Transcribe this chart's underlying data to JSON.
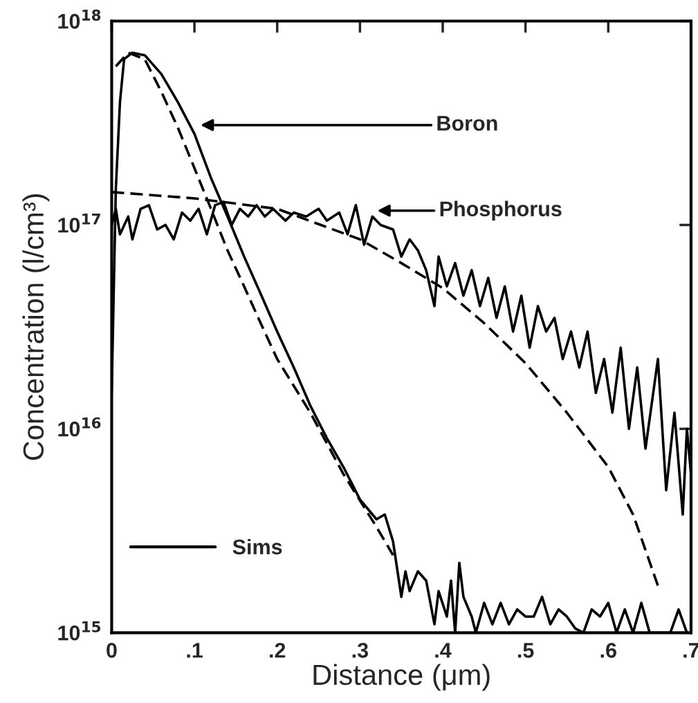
{
  "chart_data": {
    "type": "line",
    "xlabel": "Distance (μm)",
    "ylabel": "Concentration (l/cm³)",
    "log": "y",
    "xlim": [
      0,
      0.7
    ],
    "ylim": [
      1000000000000000.0,
      1e+18
    ],
    "xticks": [
      0,
      {
        "value": 0.1,
        "label": ".1"
      },
      {
        "value": 0.2,
        "label": ".2"
      },
      {
        "value": 0.3,
        "label": ".3"
      },
      {
        "value": 0.4,
        "label": ".4"
      },
      {
        "value": 0.5,
        "label": ".5"
      },
      {
        "value": 0.6,
        "label": ".6"
      },
      {
        "value": 0.7,
        "label": ".7"
      }
    ],
    "yticks": [
      {
        "value": 1000000000000000.0,
        "label": "10$^{15}$"
      },
      {
        "value": 1e+16,
        "label": "10$^{16}$"
      },
      {
        "value": 1e+17,
        "label": "10$^{17}$"
      },
      {
        "value": 1e+18,
        "label": "10$^{18}$"
      }
    ],
    "grid": false,
    "legend": "bottom left",
    "series": [
      {
        "name": "Sims",
        "color": "#000000",
        "line_style": "solid",
        "x": [
          0.0,
          0.005,
          0.01,
          0.015,
          0.025,
          0.04,
          0.06,
          0.08,
          0.1,
          0.12,
          0.14,
          0.16,
          0.18,
          0.2,
          0.22,
          0.24,
          0.26,
          0.28,
          0.3,
          0.32,
          0.33,
          0.34,
          0.35,
          0.355,
          0.36,
          0.37,
          0.38,
          0.39,
          0.395,
          0.405,
          0.41,
          0.415,
          0.42,
          0.425,
          0.435,
          0.44,
          0.45,
          0.46,
          0.47,
          0.48,
          0.49,
          0.5,
          0.51,
          0.52,
          0.53,
          0.54,
          0.55,
          0.56,
          0.57,
          0.58,
          0.59,
          0.6,
          0.61,
          0.62,
          0.63,
          0.64,
          0.65,
          0.66,
          0.675,
          0.685,
          0.695
        ],
        "values": [
          1.5e+16,
          1.5e+17,
          4e+17,
          6.5e+17,
          7e+17,
          6.8e+17,
          5.5e+17,
          4e+17,
          2.8e+17,
          1.7e+17,
          1.1e+17,
          7e+16,
          4.6e+16,
          3e+16,
          2e+16,
          1.3e+16,
          9000000000000000.0,
          6500000000000000.0,
          4500000000000000.0,
          3600000000000000.0,
          3800000000000000.0,
          2800000000000000.0,
          1500000000000000.0,
          2000000000000000.0,
          1600000000000000.0,
          2000000000000000.0,
          1800000000000000.0,
          1100000000000000.0,
          1600000000000000.0,
          1200000000000000.0,
          1800000000000000.0,
          1000000000000000.0,
          2200000000000000.0,
          1500000000000000.0,
          1200000000000000.0,
          1000000000000000.0,
          1400000000000000.0,
          1100000000000000.0,
          1400000000000000.0,
          1100000000000000.0,
          1300000000000000.0,
          1200000000000000.0,
          1200000000000000.0,
          1500000000000000.0,
          1100000000000000.0,
          1300000000000000.0,
          1200000000000000.0,
          1050000000000000.0,
          1000000000000000.0,
          1300000000000000.0,
          1200000000000000.0,
          1400000000000000.0,
          1000000000000000.0,
          1300000000000000.0,
          1000000000000000.0,
          1400000000000000.0,
          1000000000000000.0,
          1000000000000000.0,
          1000000000000000.0,
          1300000000000000.0,
          1000000000000000.0
        ]
      },
      {
        "color": "#000000",
        "line_style": "dashed",
        "x": [
          0.005,
          0.02,
          0.04,
          0.06,
          0.08,
          0.1,
          0.12,
          0.14,
          0.16,
          0.18,
          0.2,
          0.24,
          0.28,
          0.32,
          0.34
        ],
        "values": [
          6e+17,
          7e+17,
          6.5e+17,
          4.5e+17,
          3e+17,
          1.9e+17,
          1.2e+17,
          7.5e+16,
          5e+16,
          3.3e+16,
          2.2e+16,
          1.2e+16,
          6000000000000000.0,
          3300000000000000.0,
          2400000000000000.0
        ]
      },
      {
        "color": "#000000",
        "line_style": "solid",
        "x": [
          0.0,
          0.005,
          0.01,
          0.02,
          0.025,
          0.035,
          0.045,
          0.055,
          0.065,
          0.075,
          0.085,
          0.095,
          0.105,
          0.115,
          0.125,
          0.135,
          0.145,
          0.155,
          0.165,
          0.175,
          0.185,
          0.195,
          0.21,
          0.22,
          0.235,
          0.25,
          0.26,
          0.275,
          0.285,
          0.295,
          0.305,
          0.315,
          0.325,
          0.34,
          0.35,
          0.36,
          0.37,
          0.38,
          0.39,
          0.395,
          0.405,
          0.415,
          0.425,
          0.435,
          0.445,
          0.455,
          0.465,
          0.475,
          0.485,
          0.495,
          0.505,
          0.515,
          0.525,
          0.535,
          0.545,
          0.555,
          0.565,
          0.575,
          0.585,
          0.595,
          0.605,
          0.615,
          0.625,
          0.635,
          0.645,
          0.66,
          0.67,
          0.68,
          0.69,
          0.695,
          0.7
        ],
        "values": [
          1e+17,
          1.2e+17,
          9e+16,
          1.1e+17,
          8.5e+16,
          1.2e+17,
          1.25e+17,
          9.5e+16,
          1e+17,
          8.5e+16,
          1.15e+17,
          1.05e+17,
          1.2e+17,
          9e+16,
          1.25e+17,
          1.3e+17,
          1e+17,
          1.2e+17,
          1.1e+17,
          1.25e+17,
          1.1e+17,
          1.2e+17,
          1.05e+17,
          1.15e+17,
          1.1e+17,
          1.2e+17,
          1.05e+17,
          1.15e+17,
          9e+16,
          1.25e+17,
          8e+16,
          1.1e+17,
          1e+17,
          9.5e+16,
          7e+16,
          8.5e+16,
          7.5e+16,
          6e+16,
          4e+16,
          7e+16,
          5e+16,
          6.5e+16,
          4.5e+16,
          6e+16,
          4e+16,
          5.5e+16,
          3.5e+16,
          5e+16,
          3e+16,
          4.5e+16,
          2.5e+16,
          4e+16,
          3e+16,
          3.5e+16,
          2.2e+16,
          3e+16,
          2e+16,
          3e+16,
          1.5e+16,
          2.2e+16,
          1.2e+16,
          2.5e+16,
          1e+16,
          2e+16,
          8000000000000000.0,
          2.2e+16,
          5000000000000000.0,
          1.2e+16,
          3800000000000000.0,
          1e+16,
          6000000000000000.0
        ]
      },
      {
        "color": "#000000",
        "line_style": "dashed",
        "x": [
          0.0,
          0.1,
          0.2,
          0.3,
          0.35,
          0.4,
          0.45,
          0.5,
          0.55,
          0.6,
          0.63,
          0.66
        ],
        "values": [
          1.45e+17,
          1.35e+17,
          1.2e+17,
          8.5e+16,
          6.5e+16,
          4.9e+16,
          3.3e+16,
          2.1e+16,
          1.2e+16,
          6500000000000000.0,
          3800000000000000.0,
          1700000000000000.0
        ]
      }
    ],
    "annotations": [
      "Boron",
      "Phosphorus"
    ]
  }
}
